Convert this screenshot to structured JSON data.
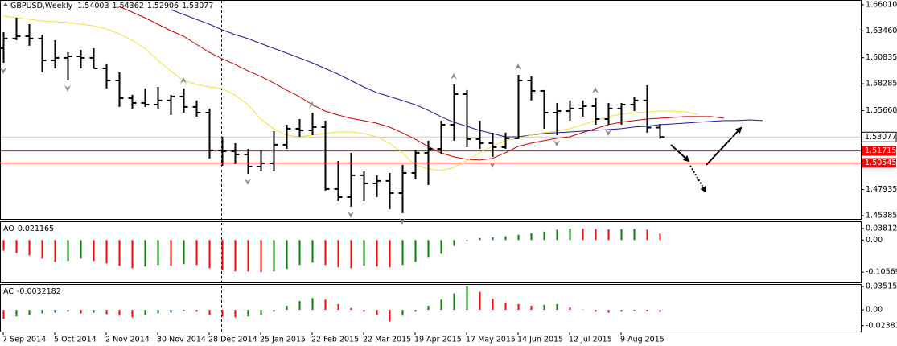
{
  "chart_data": [
    {
      "type": "ohlc",
      "title": "GBPUSD,Weekly",
      "color": "#000000",
      "categories": [
        "7 Sep 2014",
        null,
        null,
        null,
        "5 Oct 2014",
        null,
        null,
        null,
        "2 Nov 2014",
        null,
        null,
        null,
        "30 Nov 2014",
        null,
        null,
        null,
        "28 Dec 2014",
        null,
        null,
        null,
        "25 Jan 2015",
        null,
        null,
        null,
        "22 Feb 2015",
        null,
        null,
        null,
        "22 Mar 2015",
        null,
        null,
        null,
        "19 Apr 2015",
        null,
        null,
        null,
        "17 May 2015",
        null,
        null,
        null,
        "14 Jun 2015",
        null,
        null,
        null,
        "12 Jul 2015",
        null,
        null,
        null,
        "9 Aug 2015",
        null,
        null,
        null,
        null,
        null,
        null,
        null,
        null,
        null,
        null,
        null
      ],
      "open": [
        1.6176,
        1.6271,
        1.6294,
        1.6271,
        1.6058,
        1.6082,
        1.6097,
        1.6082,
        1.5979,
        1.5861,
        1.5688,
        1.5641,
        1.5625,
        1.5665,
        1.5704,
        1.5602,
        1.5546,
        1.5177,
        1.5169,
        1.5137,
        1.5019,
        1.5051,
        1.5232,
        1.5389,
        1.5373,
        1.5405,
        1.4799,
        1.472,
        1.4933,
        1.4854,
        1.4878,
        1.4759,
        1.4956,
        1.5153,
        1.5192,
        1.5428,
        1.5727,
        1.5287,
        1.5247,
        1.5208,
        1.5295,
        1.5861,
        1.5759,
        1.5546,
        1.5562,
        1.5586,
        1.5609,
        1.5483,
        1.5586,
        1.5625,
        1.5665,
        1.54003,
        null,
        null,
        null,
        null,
        null,
        null,
        null,
        null
      ],
      "high": [
        1.6333,
        1.6475,
        1.6412,
        1.631,
        1.6255,
        1.6137,
        1.616,
        1.6176,
        1.6019,
        1.594,
        1.572,
        1.5783,
        1.5798,
        1.572,
        1.5783,
        1.5665,
        1.5586,
        1.531,
        1.5247,
        1.5192,
        1.5177,
        1.5365,
        1.5428,
        1.5483,
        1.5546,
        1.5468,
        1.5074,
        1.5153,
        1.4972,
        1.4933,
        1.4956,
        1.5035,
        1.5177,
        1.5271,
        1.5468,
        1.5822,
        1.5767,
        1.5468,
        1.535,
        1.535,
        1.5916,
        1.5901,
        1.5767,
        1.5641,
        1.5665,
        1.5665,
        1.5688,
        1.5641,
        1.5641,
        1.5704,
        1.5814,
        1.54362,
        null,
        null,
        null,
        null,
        null,
        null,
        null,
        null
      ],
      "low": [
        1.6034,
        1.6255,
        1.62,
        1.594,
        1.5979,
        1.5861,
        1.5979,
        1.5979,
        1.5783,
        1.5602,
        1.5586,
        1.5602,
        1.5586,
        1.5523,
        1.5546,
        1.5507,
        1.5098,
        1.5027,
        1.5043,
        1.4948,
        1.4972,
        1.4972,
        1.5192,
        1.531,
        1.5326,
        1.4783,
        1.4681,
        1.4626,
        1.4681,
        1.472,
        1.4602,
        1.4563,
        1.4893,
        1.4838,
        1.5137,
        1.5271,
        1.5208,
        1.5192,
        1.5114,
        1.5192,
        1.5287,
        1.5665,
        1.5389,
        1.5326,
        1.5468,
        1.5507,
        1.5428,
        1.5428,
        1.5428,
        1.5562,
        1.535,
        1.52906,
        null,
        null,
        null,
        null,
        null,
        null,
        null,
        null
      ],
      "close": [
        1.6271,
        1.6294,
        1.6271,
        1.6058,
        1.6082,
        1.6097,
        1.6082,
        1.5979,
        1.5861,
        1.5688,
        1.5641,
        1.5625,
        1.5665,
        1.5704,
        1.5602,
        1.5546,
        1.5177,
        1.5169,
        1.5137,
        1.5019,
        1.5051,
        1.5232,
        1.5389,
        1.5373,
        1.5405,
        1.4799,
        1.472,
        1.4933,
        1.4854,
        1.4878,
        1.4759,
        1.4956,
        1.5153,
        1.5192,
        1.5428,
        1.5727,
        1.5287,
        1.5247,
        1.5208,
        1.5295,
        1.5861,
        1.5759,
        1.5546,
        1.5562,
        1.5586,
        1.5609,
        1.5483,
        1.5586,
        1.5625,
        1.5665,
        1.54003,
        1.53077,
        null,
        null,
        null,
        null,
        null,
        null,
        null,
        null
      ],
      "lines": [
        {
          "color": "#1a1aa0",
          "values": [
            null,
            null,
            null,
            null,
            null,
            null,
            null,
            null,
            null,
            null,
            null,
            null,
            null,
            1.6554,
            1.6507,
            1.6459,
            1.6412,
            1.6357,
            1.631,
            1.6271,
            1.6223,
            1.6176,
            1.6129,
            1.6082,
            1.6034,
            1.5979,
            1.5924,
            1.5861,
            1.5798,
            1.5743,
            1.5704,
            1.5665,
            1.5625,
            1.557,
            1.5507,
            1.5452,
            1.5413,
            1.5373,
            1.5342,
            1.531,
            1.531,
            1.5326,
            1.5342,
            1.535,
            1.5357,
            1.5365,
            1.5373,
            1.5381,
            1.5389,
            1.5405,
            1.5413,
            1.5428,
            1.5436,
            1.5444,
            1.5452,
            1.546,
            1.5468,
            1.5468,
            1.5475,
            1.5468
          ]
        },
        {
          "color": "#cc0000",
          "values": [
            null,
            null,
            null,
            null,
            null,
            null,
            null,
            null,
            null,
            1.6585,
            1.653,
            1.6475,
            1.6412,
            1.6349,
            1.6294,
            1.6215,
            1.6137,
            1.6074,
            1.6019,
            1.5956,
            1.5901,
            1.5838,
            1.5767,
            1.5704,
            1.5625,
            1.5562,
            1.5523,
            1.5491,
            1.5468,
            1.5444,
            1.5405,
            1.535,
            1.5287,
            1.5216,
            1.5153,
            1.5114,
            1.509,
            1.5082,
            1.5098,
            1.5153,
            1.5216,
            1.5247,
            1.5271,
            1.5295,
            1.531,
            1.535,
            1.5389,
            1.5428,
            1.5452,
            1.5468,
            1.5483,
            1.5491,
            1.5499,
            1.5507,
            1.5507,
            1.5507,
            1.5491,
            null,
            null,
            null
          ]
        },
        {
          "color": "#f2e33a",
          "values": [
            1.6491,
            1.6475,
            1.6459,
            1.6444,
            1.6436,
            1.6428,
            1.6412,
            1.6396,
            1.6365,
            1.6318,
            1.6255,
            1.6176,
            1.6058,
            1.5956,
            1.5861,
            1.5822,
            1.5798,
            1.5783,
            1.572,
            1.5625,
            1.5483,
            1.5389,
            1.5326,
            1.531,
            1.5326,
            1.5342,
            1.5357,
            1.5357,
            1.5342,
            1.531,
            1.5247,
            1.5153,
            1.5035,
            1.4996,
            1.498,
            1.5011,
            1.5074,
            1.5153,
            1.5216,
            1.5271,
            1.5295,
            1.5326,
            1.535,
            1.5365,
            1.5389,
            1.5428,
            1.5468,
            1.5507,
            1.5531,
            1.5546,
            1.5554,
            1.5562,
            1.5562,
            1.5554,
            1.5531,
            null,
            null,
            null,
            null,
            null
          ]
        }
      ],
      "fractals_color": "#8c8c8c",
      "fractals_up": [
        null,
        null,
        null,
        null,
        null,
        null,
        null,
        null,
        null,
        null,
        null,
        null,
        null,
        null,
        1.5783,
        null,
        null,
        null,
        null,
        null,
        null,
        null,
        null,
        null,
        1.5546,
        null,
        null,
        null,
        null,
        null,
        null,
        null,
        null,
        null,
        null,
        1.5822,
        null,
        null,
        null,
        null,
        1.5916,
        null,
        null,
        null,
        null,
        null,
        1.5688,
        null,
        null,
        null,
        null,
        null,
        null,
        null,
        null,
        null,
        null,
        null,
        null,
        null
      ],
      "fractals_down": [
        1.6034,
        null,
        null,
        null,
        null,
        1.5861,
        null,
        null,
        null,
        null,
        null,
        null,
        null,
        null,
        null,
        null,
        null,
        null,
        null,
        1.4948,
        null,
        null,
        null,
        null,
        null,
        null,
        null,
        1.4626,
        null,
        null,
        null,
        1.4563,
        null,
        null,
        null,
        null,
        null,
        null,
        1.5114,
        null,
        null,
        null,
        null,
        1.5326,
        null,
        null,
        null,
        1.5428,
        null,
        null,
        null,
        null,
        null,
        null,
        null,
        null,
        null,
        null,
        null,
        null
      ],
      "price_lines": [
        {
          "value": 1.51715,
          "color": "#ff0000"
        },
        {
          "value": 1.50545,
          "color": "#ff0000"
        }
      ],
      "current_line_color": "#c8c8c8",
      "ylim": [
        1.4507,
        1.664
      ],
      "yticks": [
        {
          "value": 1.6601,
          "label": "1.66010"
        },
        {
          "value": 1.6346,
          "label": "1.63460"
        },
        1.60835,
        1.58285,
        {
          "value": 1.5566,
          "label": "1.55660"
        },
        1.47935,
        1.45385
      ]
    },
    {
      "type": "histogram",
      "title": "AO",
      "up_color": "#008000",
      "down_color": "#ff0000",
      "values": [
        -0.035,
        -0.0429,
        -0.0507,
        -0.0612,
        -0.0717,
        -0.069,
        -0.0612,
        -0.069,
        -0.0769,
        -0.0847,
        -0.0926,
        -0.0874,
        -0.0821,
        -0.0847,
        -0.0795,
        -0.0821,
        -0.0926,
        -0.1004,
        -0.103,
        -0.104,
        -0.1057,
        -0.103,
        -0.0952,
        -0.0821,
        -0.0743,
        -0.0821,
        -0.09,
        -0.0926,
        -0.0847,
        -0.0874,
        -0.09,
        -0.0821,
        -0.0717,
        -0.0586,
        -0.0455,
        -0.0194,
        -0.0037,
        0.0068,
        0.0094,
        0.012,
        0.0173,
        0.0225,
        0.0277,
        0.034,
        0.0381,
        0.0372,
        0.036,
        0.035,
        0.0358,
        0.0365,
        0.034,
        0.021165,
        null,
        null,
        null,
        null,
        null,
        null,
        null,
        null
      ],
      "ylim": [
        -0.1397,
        0.059
      ],
      "yticks": [
        0.038122,
        {
          "value": 0,
          "label": "0.00"
        },
        -0.105695
      ]
    },
    {
      "type": "histogram",
      "title": "AC",
      "up_color": "#008000",
      "down_color": "#ff0000",
      "values": [
        -0.0134,
        -0.0099,
        -0.0076,
        -0.0053,
        -0.0042,
        -0.003,
        -0.0053,
        -0.0042,
        -0.0065,
        -0.0088,
        -0.0111,
        -0.0076,
        -0.0053,
        -0.0042,
        -0.0018,
        -0.003,
        -0.0076,
        -0.0099,
        -0.0111,
        -0.0099,
        -0.0076,
        -0.003,
        0.0062,
        0.0132,
        0.0178,
        0.0155,
        0.0086,
        0.0028,
        -0.003,
        -0.0076,
        -0.0175,
        -0.0088,
        -0.003,
        0.0062,
        0.0155,
        0.0247,
        0.035153,
        0.0271,
        0.0166,
        0.0109,
        0.0086,
        0.0062,
        0.0074,
        0.0086,
        0.0039,
        0.0005,
        -0.003,
        -0.0042,
        -0.003,
        -0.0018,
        -0.0024,
        -0.0032182,
        null,
        null,
        null,
        null,
        null,
        null,
        null,
        null
      ],
      "ylim": [
        -0.0325,
        0.0375
      ],
      "yticks": [
        0.035153,
        {
          "value": 0,
          "label": "0.00"
        },
        {
          "value": -0.02381,
          "label": "-0.023810"
        }
      ]
    }
  ]
}
